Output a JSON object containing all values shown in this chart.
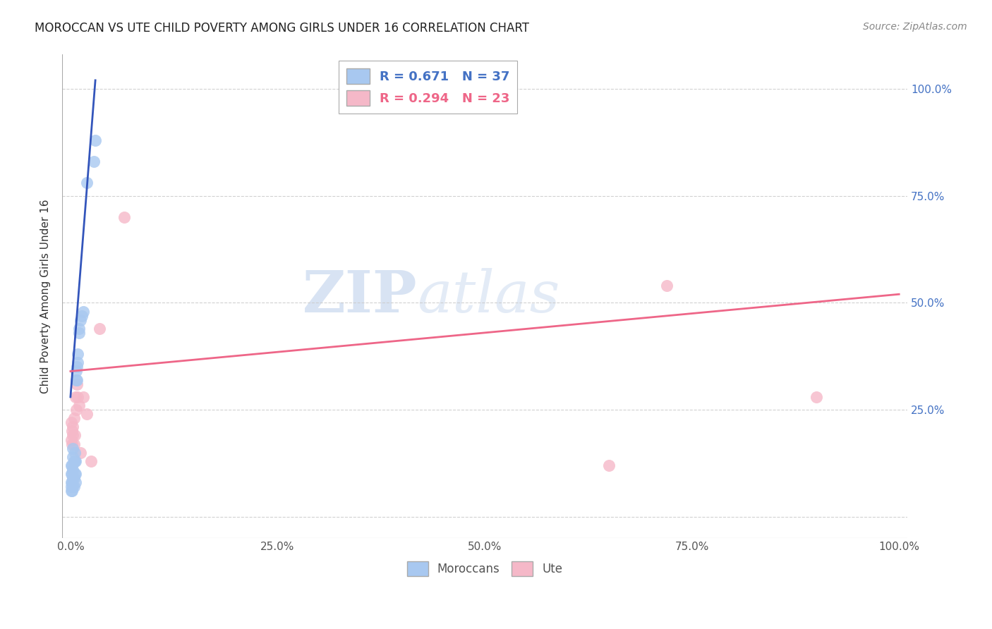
{
  "title": "MOROCCAN VS UTE CHILD POVERTY AMONG GIRLS UNDER 16 CORRELATION CHART",
  "source": "Source: ZipAtlas.com",
  "ylabel": "Child Poverty Among Girls Under 16",
  "xlim": [
    -0.01,
    1.01
  ],
  "ylim": [
    -0.05,
    1.08
  ],
  "x_ticks": [
    0.0,
    0.25,
    0.5,
    0.75,
    1.0
  ],
  "x_tick_labels": [
    "0.0%",
    "25.0%",
    "50.0%",
    "75.0%",
    "100.0%"
  ],
  "y_ticks": [
    0.0,
    0.25,
    0.5,
    0.75,
    1.0
  ],
  "y_tick_labels_left": [
    "",
    "",
    "",
    "",
    ""
  ],
  "y_tick_labels_right": [
    "",
    "25.0%",
    "50.0%",
    "75.0%",
    "100.0%"
  ],
  "moroccan_color": "#a8c8f0",
  "ute_color": "#f5b8c8",
  "moroccan_line_color": "#3355bb",
  "ute_line_color": "#ee6688",
  "moroccan_R": 0.671,
  "moroccan_N": 37,
  "ute_R": 0.294,
  "ute_N": 23,
  "watermark_zip": "ZIP",
  "watermark_atlas": "atlas",
  "moroccan_x": [
    0.001,
    0.001,
    0.001,
    0.001,
    0.001,
    0.002,
    0.002,
    0.002,
    0.002,
    0.003,
    0.003,
    0.003,
    0.003,
    0.003,
    0.004,
    0.004,
    0.004,
    0.005,
    0.005,
    0.005,
    0.006,
    0.006,
    0.006,
    0.007,
    0.007,
    0.008,
    0.008,
    0.009,
    0.009,
    0.01,
    0.01,
    0.012,
    0.014,
    0.015,
    0.02,
    0.028,
    0.03
  ],
  "moroccan_y": [
    0.06,
    0.07,
    0.08,
    0.1,
    0.12,
    0.06,
    0.08,
    0.1,
    0.12,
    0.07,
    0.09,
    0.11,
    0.14,
    0.16,
    0.07,
    0.09,
    0.13,
    0.1,
    0.13,
    0.15,
    0.08,
    0.1,
    0.13,
    0.32,
    0.34,
    0.32,
    0.35,
    0.36,
    0.38,
    0.43,
    0.44,
    0.46,
    0.47,
    0.48,
    0.78,
    0.83,
    0.88
  ],
  "ute_x": [
    0.001,
    0.001,
    0.002,
    0.002,
    0.003,
    0.003,
    0.004,
    0.004,
    0.005,
    0.006,
    0.007,
    0.008,
    0.009,
    0.01,
    0.012,
    0.015,
    0.02,
    0.025,
    0.035,
    0.065,
    0.65,
    0.72,
    0.9
  ],
  "ute_y": [
    0.18,
    0.22,
    0.17,
    0.2,
    0.19,
    0.21,
    0.17,
    0.23,
    0.19,
    0.28,
    0.25,
    0.31,
    0.28,
    0.26,
    0.15,
    0.28,
    0.24,
    0.13,
    0.44,
    0.7,
    0.12,
    0.54,
    0.28
  ],
  "moroccan_line_x": [
    0.0,
    0.03
  ],
  "moroccan_line_y": [
    0.28,
    1.02
  ],
  "ute_line_x": [
    0.0,
    1.0
  ],
  "ute_line_y": [
    0.34,
    0.52
  ]
}
